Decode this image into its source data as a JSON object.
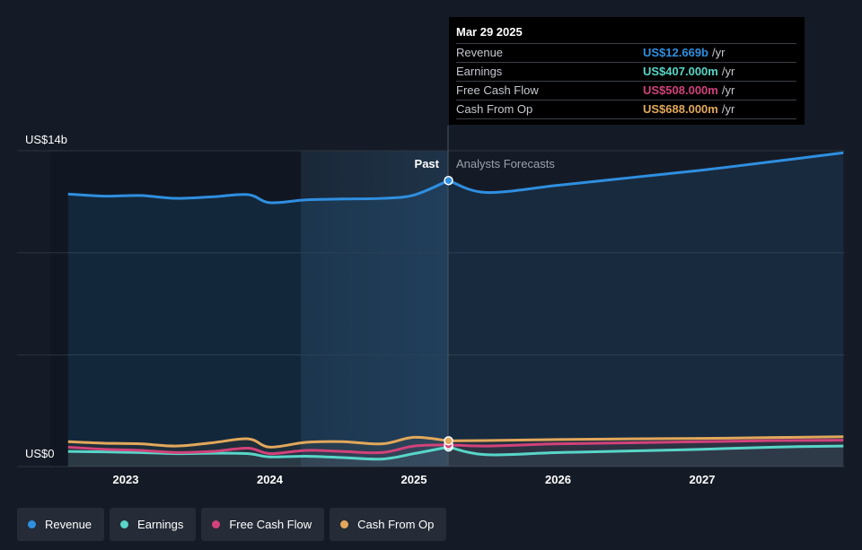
{
  "chart_data": {
    "type": "line",
    "y_unit_label_top": "US$14b",
    "y_unit_label_bottom": "US$0",
    "ylim": [
      0,
      14
    ],
    "x_ticks": [
      "2023",
      "2024",
      "2025",
      "2026",
      "2027"
    ],
    "divider_labels": {
      "past": "Past",
      "forecast": "Analysts Forecasts"
    },
    "divider_date": 2025.24,
    "series": [
      {
        "name": "Revenue",
        "color": "#2f8fe0",
        "past": [
          [
            2022.6,
            12.05
          ],
          [
            2022.85,
            11.95
          ],
          [
            2023.1,
            11.98
          ],
          [
            2023.35,
            11.85
          ],
          [
            2023.6,
            11.92
          ],
          [
            2023.85,
            12.02
          ],
          [
            2024.0,
            11.65
          ],
          [
            2024.25,
            11.78
          ],
          [
            2024.5,
            11.82
          ],
          [
            2024.78,
            11.85
          ],
          [
            2025.0,
            12.0
          ],
          [
            2025.24,
            12.669
          ]
        ],
        "forecast": [
          [
            2025.24,
            12.669
          ],
          [
            2025.5,
            12.12
          ],
          [
            2026.0,
            12.45
          ],
          [
            2026.5,
            12.8
          ],
          [
            2027.0,
            13.15
          ],
          [
            2027.5,
            13.55
          ],
          [
            2027.98,
            13.95
          ]
        ]
      },
      {
        "name": "Earnings",
        "color": "#58d6c8",
        "past": [
          [
            2022.6,
            0.2
          ],
          [
            2022.85,
            0.18
          ],
          [
            2023.1,
            0.15
          ],
          [
            2023.35,
            0.1
          ],
          [
            2023.6,
            0.12
          ],
          [
            2023.85,
            0.1
          ],
          [
            2024.0,
            -0.05
          ],
          [
            2024.25,
            -0.02
          ],
          [
            2024.5,
            -0.08
          ],
          [
            2024.78,
            -0.15
          ],
          [
            2025.0,
            0.1
          ],
          [
            2025.24,
            0.407
          ]
        ],
        "forecast": [
          [
            2025.24,
            0.407
          ],
          [
            2025.5,
            0.05
          ],
          [
            2026.0,
            0.15
          ],
          [
            2026.5,
            0.22
          ],
          [
            2027.0,
            0.3
          ],
          [
            2027.5,
            0.4
          ],
          [
            2027.98,
            0.45
          ]
        ]
      },
      {
        "name": "Free Cash Flow",
        "color": "#d2427a",
        "past": [
          [
            2022.6,
            0.4
          ],
          [
            2022.85,
            0.3
          ],
          [
            2023.1,
            0.25
          ],
          [
            2023.35,
            0.15
          ],
          [
            2023.6,
            0.2
          ],
          [
            2023.85,
            0.35
          ],
          [
            2024.0,
            0.1
          ],
          [
            2024.25,
            0.25
          ],
          [
            2024.5,
            0.2
          ],
          [
            2024.78,
            0.15
          ],
          [
            2025.0,
            0.45
          ],
          [
            2025.24,
            0.508
          ]
        ],
        "forecast": [
          [
            2025.24,
            0.508
          ],
          [
            2025.5,
            0.45
          ],
          [
            2026.0,
            0.55
          ],
          [
            2026.5,
            0.6
          ],
          [
            2027.0,
            0.65
          ],
          [
            2027.5,
            0.7
          ],
          [
            2027.98,
            0.72
          ]
        ]
      },
      {
        "name": "Cash From Op",
        "color": "#e2a85b",
        "past": [
          [
            2022.6,
            0.65
          ],
          [
            2022.85,
            0.58
          ],
          [
            2023.1,
            0.55
          ],
          [
            2023.35,
            0.45
          ],
          [
            2023.6,
            0.6
          ],
          [
            2023.85,
            0.78
          ],
          [
            2024.0,
            0.4
          ],
          [
            2024.25,
            0.62
          ],
          [
            2024.5,
            0.65
          ],
          [
            2024.78,
            0.55
          ],
          [
            2025.0,
            0.85
          ],
          [
            2025.24,
            0.688
          ]
        ],
        "forecast": [
          [
            2025.24,
            0.688
          ],
          [
            2025.5,
            0.7
          ],
          [
            2026.0,
            0.75
          ],
          [
            2026.5,
            0.78
          ],
          [
            2027.0,
            0.8
          ],
          [
            2027.5,
            0.84
          ],
          [
            2027.98,
            0.88
          ]
        ]
      }
    ],
    "tooltip": {
      "date": "Mar 29 2025",
      "rows": [
        {
          "label": "Revenue",
          "value": "US$12.669b",
          "unit": "/yr",
          "color": "#2f8fe0"
        },
        {
          "label": "Earnings",
          "value": "US$407.000m",
          "unit": "/yr",
          "color": "#58d6c8"
        },
        {
          "label": "Free Cash Flow",
          "value": "US$508.000m",
          "unit": "/yr",
          "color": "#d2427a"
        },
        {
          "label": "Cash From Op",
          "value": "US$688.000m",
          "unit": "/yr",
          "color": "#e2a85b"
        }
      ]
    },
    "legend": [
      {
        "label": "Revenue",
        "color": "#2f8fe0"
      },
      {
        "label": "Earnings",
        "color": "#58d6c8"
      },
      {
        "label": "Free Cash Flow",
        "color": "#d2427a"
      },
      {
        "label": "Cash From Op",
        "color": "#e2a85b"
      }
    ]
  }
}
